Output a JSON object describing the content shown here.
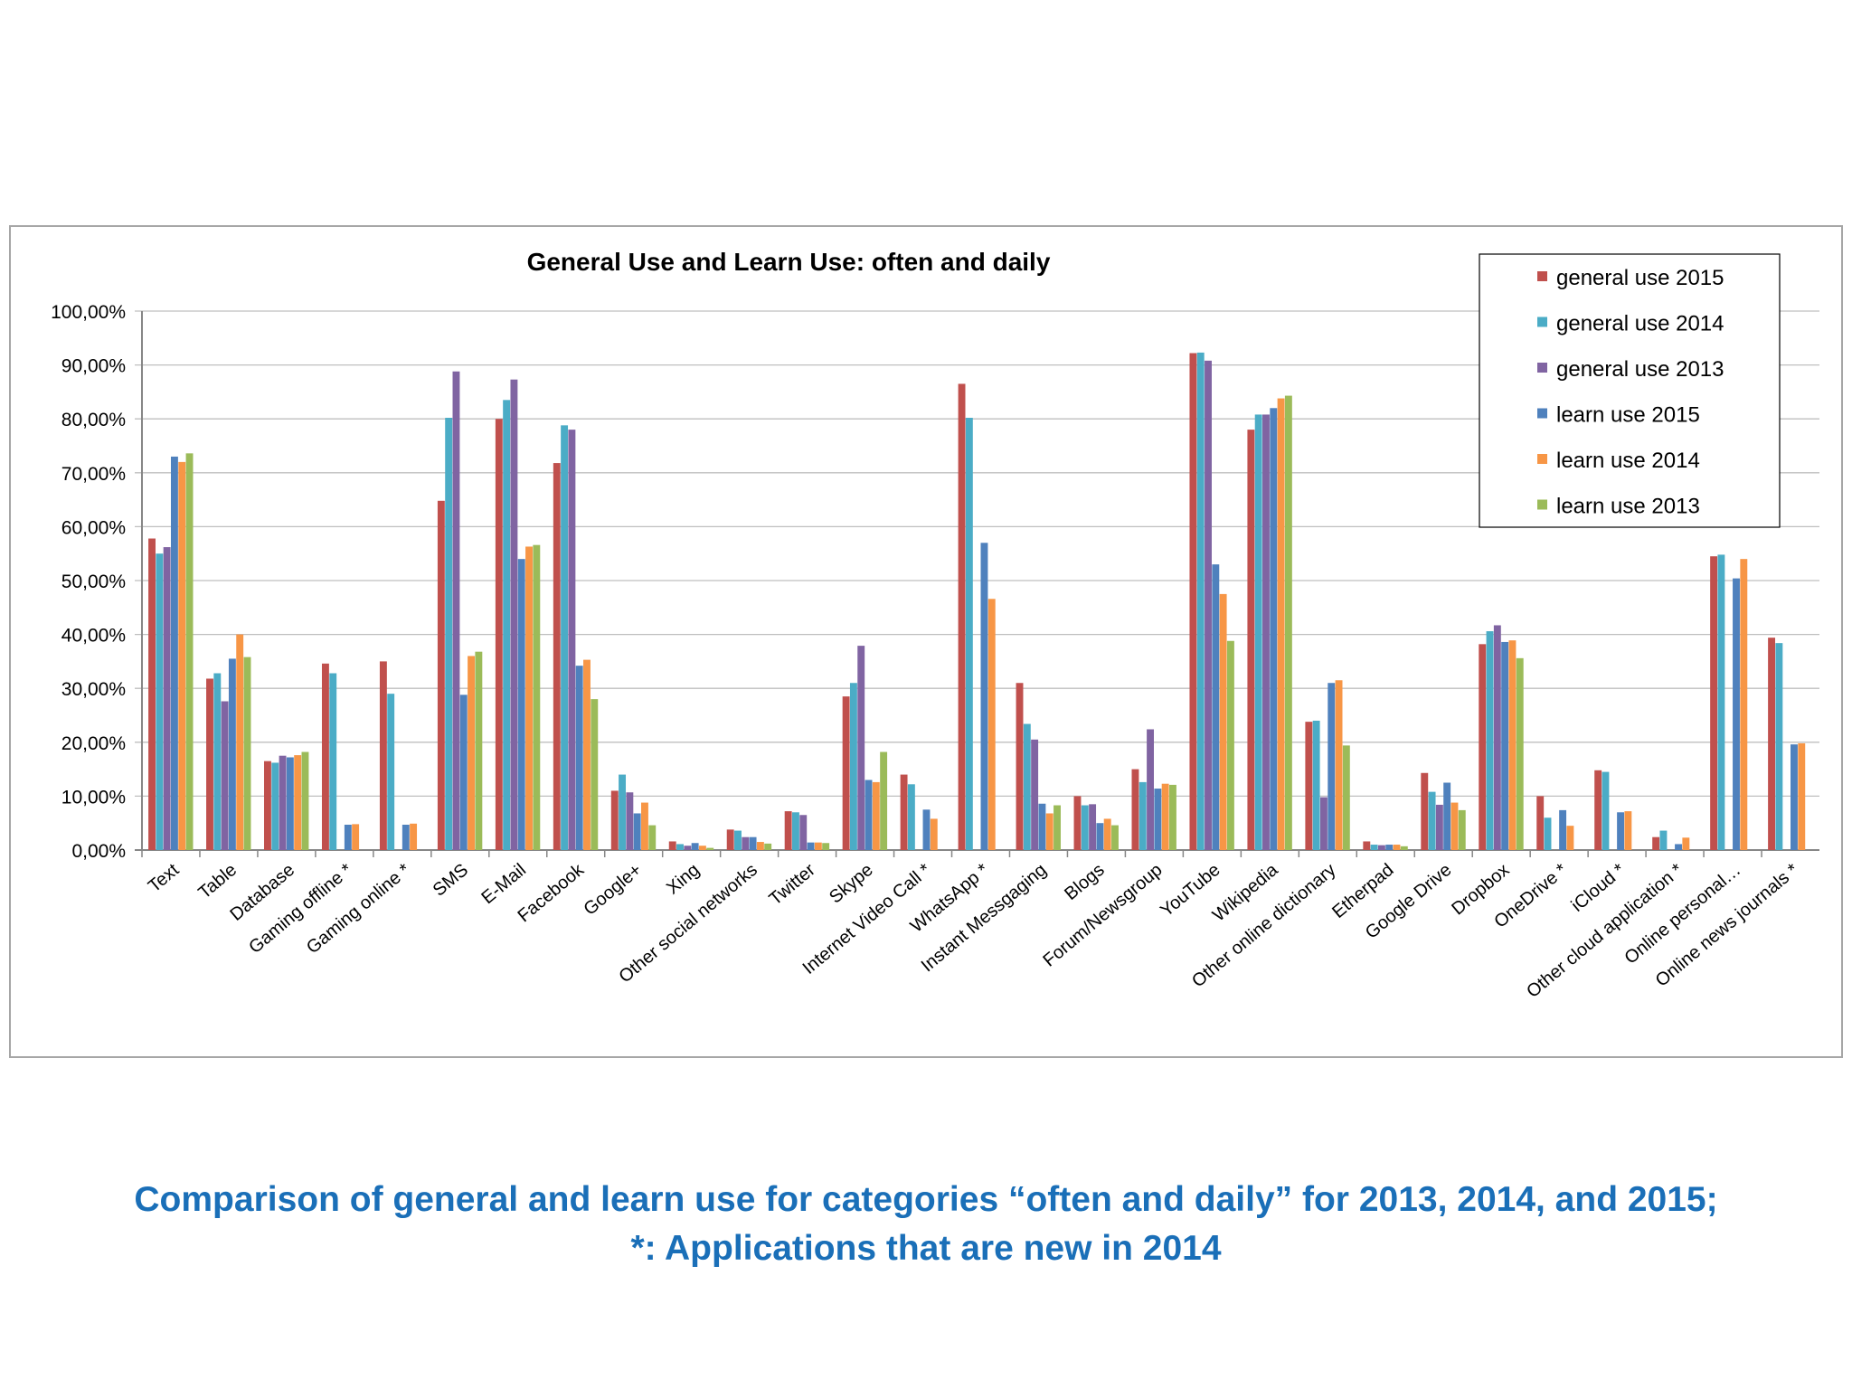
{
  "chart_data": {
    "type": "bar",
    "title": "General Use and Learn Use: often and daily",
    "xlabel": "",
    "ylabel": "",
    "ylim": [
      0,
      100
    ],
    "y_ticks": [
      "0,00%",
      "10,00%",
      "20,00%",
      "30,00%",
      "40,00%",
      "50,00%",
      "60,00%",
      "70,00%",
      "80,00%",
      "90,00%",
      "100,00%"
    ],
    "grid": true,
    "legend_position": "top-right",
    "categories": [
      "Text",
      "Table",
      "Database",
      "Gaming offline *",
      "Gaming online *",
      "SMS",
      "E-Mail",
      "Facebook",
      "Google+",
      "Xing",
      "Other social networks",
      "Twitter",
      "Skype",
      "Internet Video Call *",
      "WhatsApp *",
      "Instant Messgaging",
      "Blogs",
      "Forum/Newsgroup",
      "YouTube",
      "Wikipedia",
      "Other online dictionary",
      "Etherpad",
      "Google Drive",
      "Dropbox",
      "OneDrive *",
      "iCloud *",
      "Other cloud application *",
      "Online personal…",
      "Online news journals *"
    ],
    "series": [
      {
        "name": "general use 2015",
        "color": "#c0504d",
        "values": [
          57.8,
          31.8,
          16.5,
          34.6,
          35.0,
          64.8,
          80.0,
          71.8,
          11.0,
          1.6,
          3.8,
          7.2,
          28.5,
          14.0,
          86.5,
          31.0,
          10.0,
          15.0,
          92.2,
          78.0,
          23.8,
          1.6,
          14.3,
          38.2,
          10.0,
          14.8,
          2.4,
          54.5,
          39.4
        ]
      },
      {
        "name": "general use 2014",
        "color": "#4bacc6",
        "values": [
          55.0,
          32.8,
          16.2,
          32.8,
          29.0,
          80.2,
          83.5,
          78.8,
          14.0,
          1.1,
          3.6,
          7.0,
          31.0,
          12.2,
          80.2,
          23.4,
          8.3,
          12.6,
          92.3,
          80.8,
          24.0,
          1.0,
          10.8,
          40.6,
          6.0,
          14.5,
          3.6,
          54.8,
          38.4
        ]
      },
      {
        "name": "general use 2013",
        "color": "#8064a2",
        "values": [
          56.2,
          27.6,
          17.5,
          null,
          null,
          88.8,
          87.3,
          78.0,
          10.7,
          0.8,
          2.4,
          6.5,
          37.9,
          null,
          null,
          20.5,
          8.5,
          22.4,
          90.8,
          80.8,
          9.8,
          0.9,
          8.4,
          41.7,
          null,
          null,
          null,
          null,
          null
        ]
      },
      {
        "name": "learn use 2015",
        "color": "#4f81bd",
        "values": [
          73.0,
          35.5,
          17.2,
          4.7,
          4.7,
          28.8,
          54.0,
          34.2,
          6.8,
          1.3,
          2.4,
          1.4,
          13.0,
          7.5,
          57.0,
          8.6,
          5.0,
          11.4,
          53.0,
          82.0,
          31.0,
          1.0,
          12.5,
          38.6,
          7.4,
          7.0,
          1.1,
          50.4,
          19.6
        ]
      },
      {
        "name": "learn use 2014",
        "color": "#f79646",
        "values": [
          72.0,
          40.0,
          17.6,
          4.8,
          4.9,
          36.0,
          56.3,
          35.3,
          8.8,
          0.8,
          1.5,
          1.4,
          12.6,
          5.8,
          46.6,
          6.8,
          5.8,
          12.3,
          47.5,
          83.8,
          31.5,
          1.0,
          8.8,
          38.9,
          4.5,
          7.2,
          2.3,
          54.0,
          19.8
        ]
      },
      {
        "name": "learn use 2013",
        "color": "#9bbb59",
        "values": [
          73.6,
          35.8,
          18.2,
          null,
          null,
          36.8,
          56.6,
          28.0,
          4.6,
          0.4,
          1.2,
          1.3,
          18.2,
          null,
          null,
          8.3,
          4.6,
          12.1,
          38.8,
          84.3,
          19.4,
          0.7,
          7.4,
          35.6,
          null,
          null,
          null,
          null,
          null
        ]
      }
    ]
  },
  "caption": {
    "line1": "Comparison of general and learn use for categories “often and daily” for 2013, 2014, and 2015;",
    "line2": "*: Applications that are new in 2014"
  }
}
